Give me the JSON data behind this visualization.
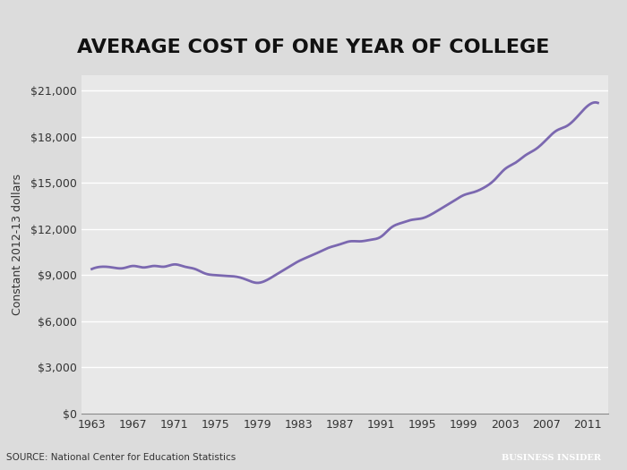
{
  "title": "AVERAGE COST OF ONE YEAR OF COLLEGE",
  "ylabel": "Constant 2012-13 dollars",
  "source_text": "SOURCE: National Center for Education Statistics",
  "brand_text": "BUSINESS INSIDER",
  "line_color": "#7B68B0",
  "background_color": "#dcdcdc",
  "plot_bg_color": "#e8e8e8",
  "grid_color": "#ffffff",
  "years": [
    1963,
    1964,
    1965,
    1966,
    1967,
    1968,
    1969,
    1970,
    1971,
    1972,
    1973,
    1974,
    1975,
    1976,
    1977,
    1978,
    1979,
    1980,
    1981,
    1982,
    1983,
    1984,
    1985,
    1986,
    1987,
    1988,
    1989,
    1990,
    1991,
    1992,
    1993,
    1994,
    1995,
    1996,
    1997,
    1998,
    1999,
    2000,
    2001,
    2002,
    2003,
    2004,
    2005,
    2006,
    2007,
    2008,
    2009,
    2010,
    2011,
    2012
  ],
  "values": [
    9400,
    9550,
    9500,
    9450,
    9600,
    9500,
    9600,
    9550,
    9700,
    9550,
    9400,
    9100,
    9000,
    8950,
    8900,
    8700,
    8500,
    8700,
    9100,
    9500,
    9900,
    10200,
    10500,
    10800,
    11000,
    11200,
    11200,
    11300,
    11500,
    12100,
    12400,
    12600,
    12700,
    13000,
    13400,
    13800,
    14200,
    14400,
    14700,
    15200,
    15900,
    16300,
    16800,
    17200,
    17800,
    18400,
    18700,
    19300,
    20000,
    20200
  ],
  "xtick_years": [
    1963,
    1967,
    1971,
    1975,
    1979,
    1983,
    1987,
    1991,
    1995,
    1999,
    2003,
    2007,
    2011
  ],
  "ytick_values": [
    0,
    3000,
    6000,
    9000,
    12000,
    15000,
    18000,
    21000
  ],
  "ylim": [
    0,
    22000
  ],
  "xlim": [
    1962,
    2013
  ]
}
